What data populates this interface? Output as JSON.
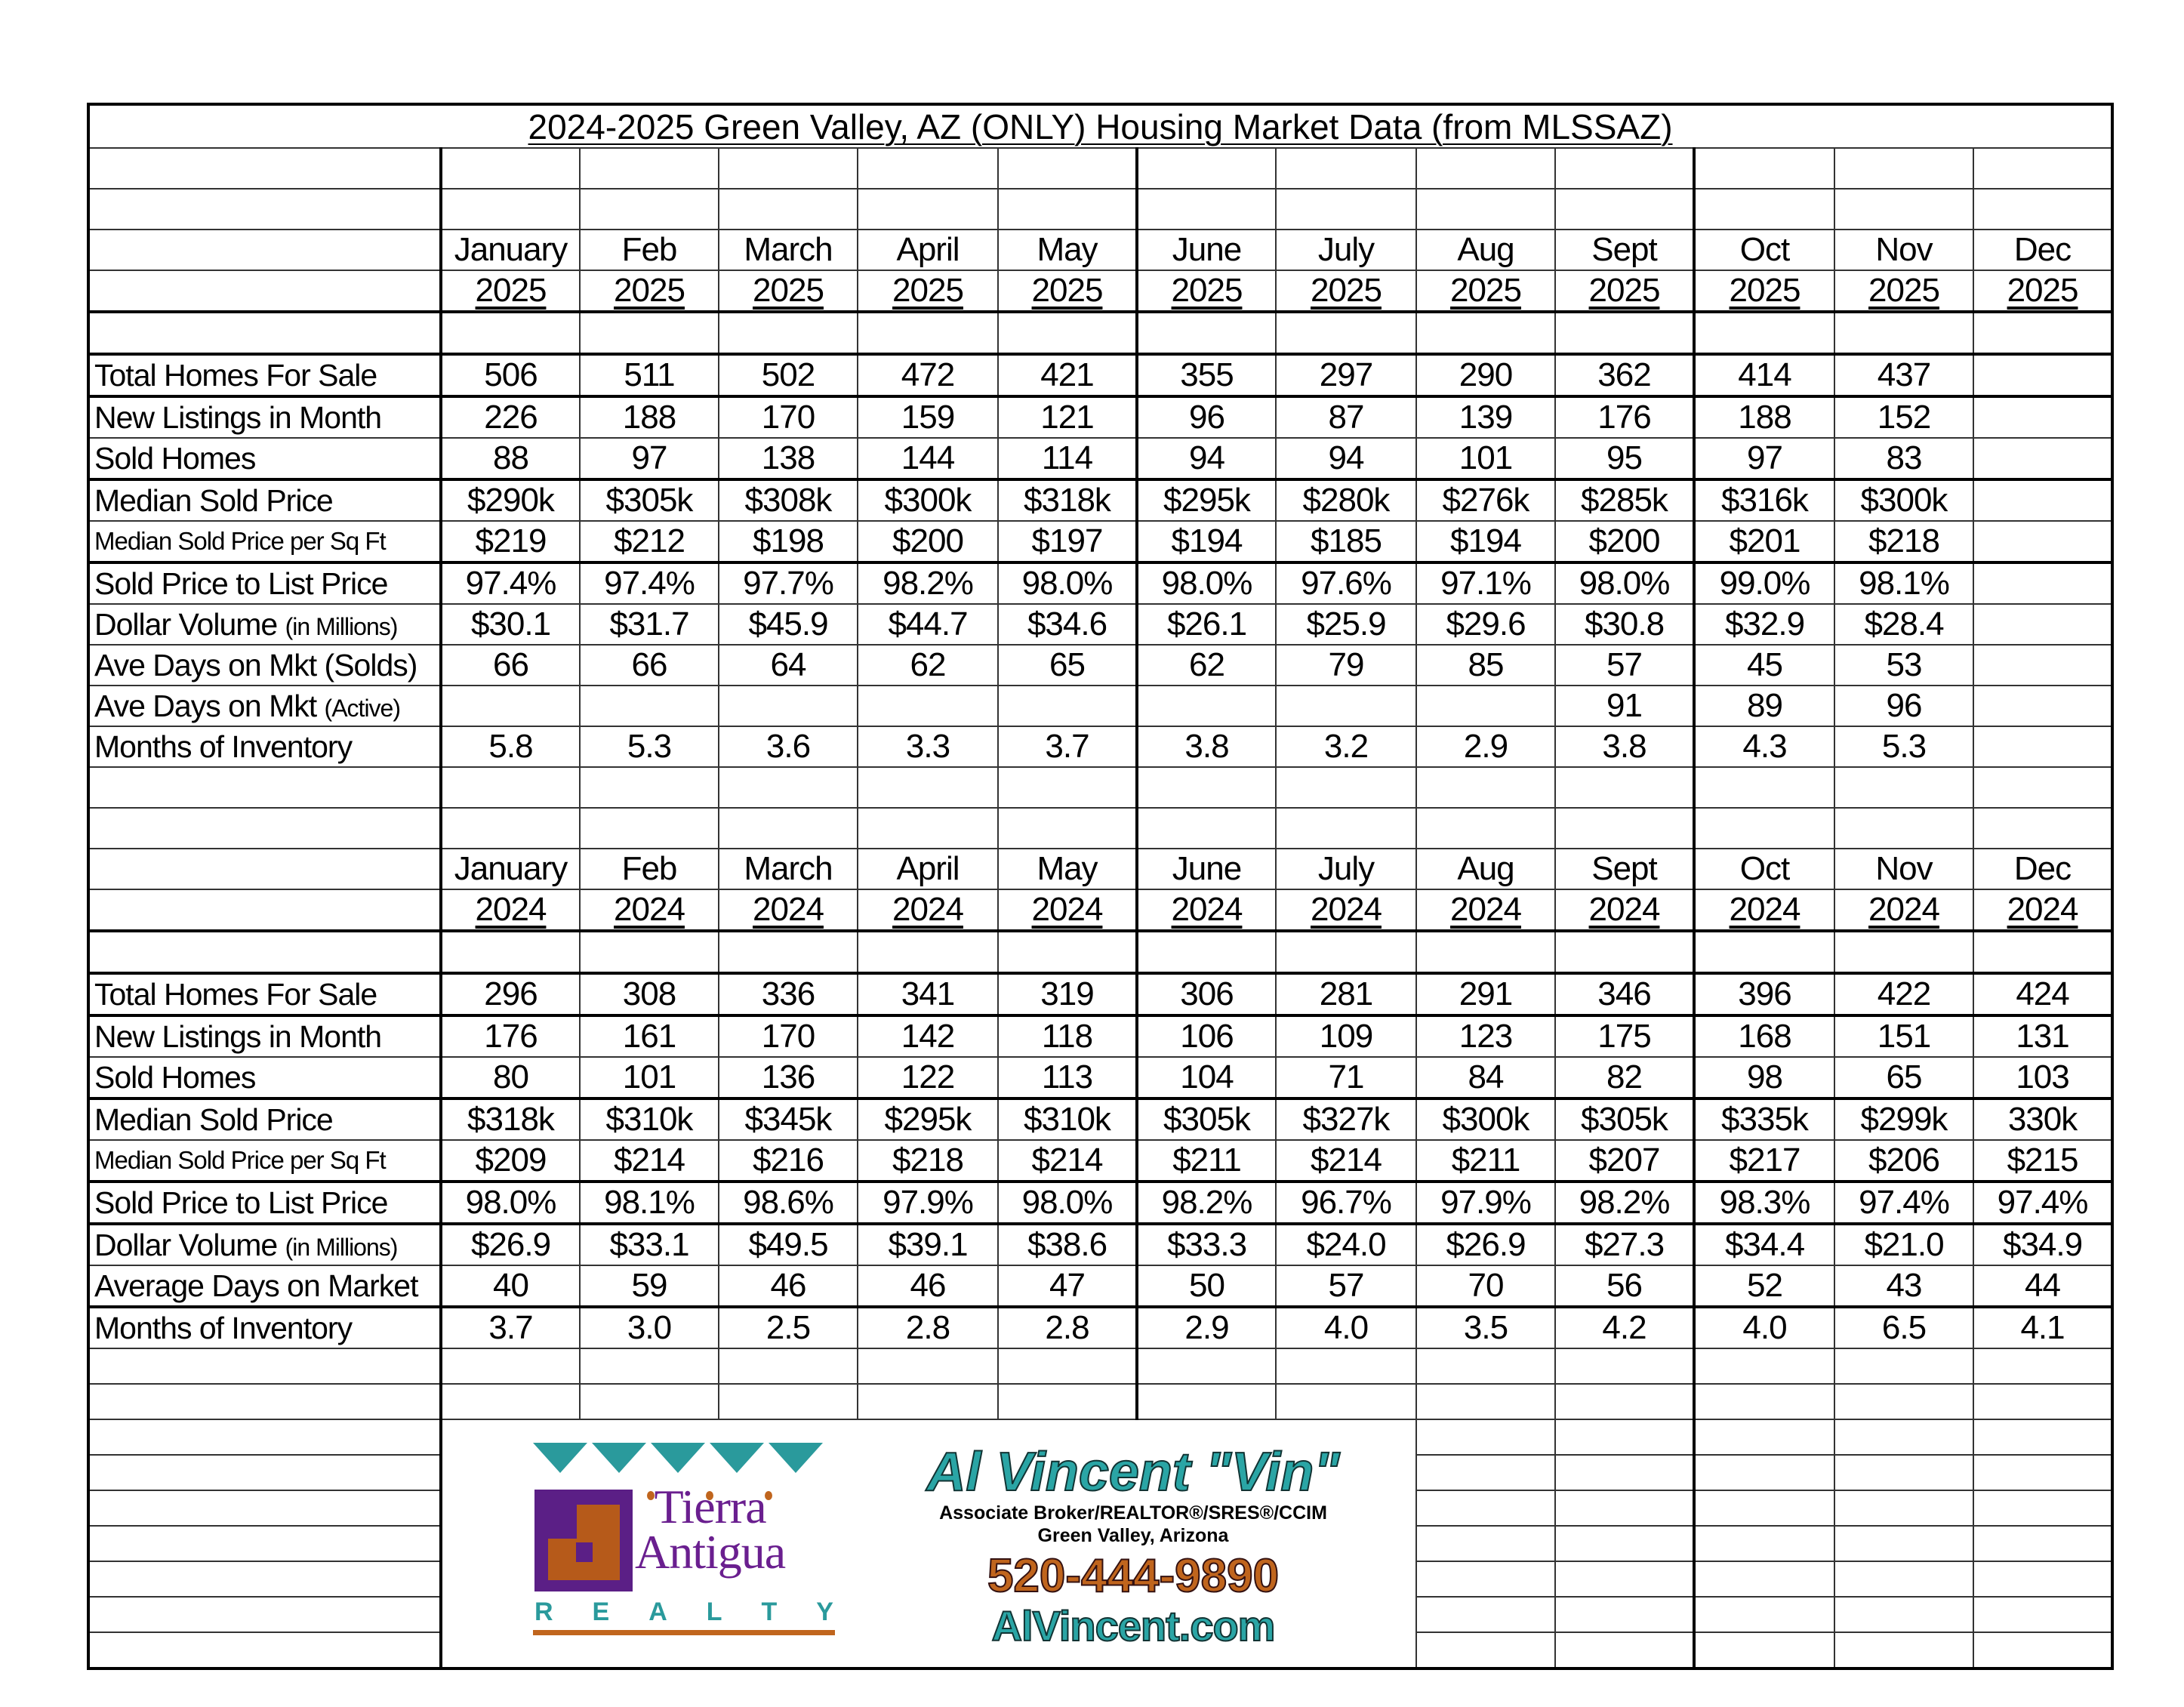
{
  "title": "2024-2025 Green Valley, AZ (ONLY) Housing Market Data (from MLSSAZ)",
  "tables": [
    {
      "months": [
        "January",
        "Feb",
        "March",
        "April",
        "May",
        "June",
        "July",
        "Aug",
        "Sept",
        "Oct",
        "Nov",
        "Dec"
      ],
      "year": "2025",
      "rows": [
        {
          "label": "Total Homes For Sale",
          "values": [
            "506",
            "511",
            "502",
            "472",
            "421",
            "355",
            "297",
            "290",
            "362",
            "414",
            "437",
            ""
          ]
        },
        {
          "label": "New Listings in Month",
          "values": [
            "226",
            "188",
            "170",
            "159",
            "121",
            "96",
            "87",
            "139",
            "176",
            "188",
            "152",
            ""
          ]
        },
        {
          "label": "Sold Homes",
          "values": [
            "88",
            "97",
            "138",
            "144",
            "114",
            "94",
            "94",
            "101",
            "95",
            "97",
            "83",
            ""
          ]
        },
        {
          "label": "Median Sold Price",
          "values": [
            "$290k",
            "$305k",
            "$308k",
            "$300k",
            "$318k",
            "$295k",
            "$280k",
            "$276k",
            "$285k",
            "$316k",
            "$300k",
            ""
          ]
        },
        {
          "label": "Median Sold Price per Sq Ft",
          "small": true,
          "values": [
            "$219",
            "$212",
            "$198",
            "$200",
            "$197",
            "$194",
            "$185",
            "$194",
            "$200",
            "$201",
            "$218",
            ""
          ]
        },
        {
          "label": "Sold Price to List Price",
          "values": [
            "97.4%",
            "97.4%",
            "97.7%",
            "98.2%",
            "98.0%",
            "98.0%",
            "97.6%",
            "97.1%",
            "98.0%",
            "99.0%",
            "98.1%",
            ""
          ]
        },
        {
          "label": "Dollar Volume ",
          "suffix": "(in Millions)",
          "values": [
            "$30.1",
            "$31.7",
            "$45.9",
            "$44.7",
            "$34.6",
            "$26.1",
            "$25.9",
            "$29.6",
            "$30.8",
            "$32.9",
            "$28.4",
            ""
          ]
        },
        {
          "label": "Ave Days on Mkt ",
          "suffix": "(Solds)",
          "suffix_same": true,
          "values": [
            "66",
            "66",
            "64",
            "62",
            "65",
            "62",
            "79",
            "85",
            "57",
            "45",
            "53",
            ""
          ]
        },
        {
          "label": "Ave Days on Mkt ",
          "suffix": "(Active)",
          "values": [
            "",
            "",
            "",
            "",
            "",
            "",
            "",
            "",
            "91",
            "89",
            "96",
            ""
          ]
        },
        {
          "label": "Months of Inventory",
          "values": [
            "5.8",
            "5.3",
            "3.6",
            "3.3",
            "3.7",
            "3.8",
            "3.2",
            "2.9",
            "3.8",
            "4.3",
            "5.3",
            ""
          ]
        }
      ]
    },
    {
      "months": [
        "January",
        "Feb",
        "March",
        "April",
        "May",
        "June",
        "July",
        "Aug",
        "Sept",
        "Oct",
        "Nov",
        "Dec"
      ],
      "year": "2024",
      "rows": [
        {
          "label": "Total Homes For Sale",
          "values": [
            "296",
            "308",
            "336",
            "341",
            "319",
            "306",
            "281",
            "291",
            "346",
            "396",
            "422",
            "424"
          ]
        },
        {
          "label": "New Listings in Month",
          "values": [
            "176",
            "161",
            "170",
            "142",
            "118",
            "106",
            "109",
            "123",
            "175",
            "168",
            "151",
            "131"
          ]
        },
        {
          "label": "Sold Homes",
          "values": [
            "80",
            "101",
            "136",
            "122",
            "113",
            "104",
            "71",
            "84",
            "82",
            "98",
            "65",
            "103"
          ]
        },
        {
          "label": "Median Sold Price",
          "values": [
            "$318k",
            "$310k",
            "$345k",
            "$295k",
            "$310k",
            "$305k",
            "$327k",
            "$300k",
            "$305k",
            "$335k",
            "$299k",
            "330k"
          ]
        },
        {
          "label": "Median Sold Price per Sq Ft",
          "small": true,
          "values": [
            "$209",
            "$214",
            "$216",
            "$218",
            "$214",
            "$211",
            "$214",
            "$211",
            "$207",
            "$217",
            "$206",
            "$215"
          ]
        },
        {
          "label": "Sold Price to List Price",
          "values": [
            "98.0%",
            "98.1%",
            "98.6%",
            "97.9%",
            "98.0%",
            "98.2%",
            "96.7%",
            "97.9%",
            "98.2%",
            "98.3%",
            "97.4%",
            "97.4%"
          ]
        },
        {
          "label": "Dollar Volume ",
          "suffix": "(in Millions)",
          "values": [
            "$26.9",
            "$33.1",
            "$49.5",
            "$39.1",
            "$38.6",
            "$33.3",
            "$24.0",
            "$26.9",
            "$27.3",
            "$34.4",
            "$21.0",
            "$34.9"
          ]
        },
        {
          "label": "Average Days on Market",
          "values": [
            "40",
            "59",
            "46",
            "46",
            "47",
            "50",
            "57",
            "70",
            "56",
            "52",
            "43",
            "44"
          ]
        },
        {
          "label": "Months of Inventory",
          "values": [
            "3.7",
            "3.0",
            "2.5",
            "2.8",
            "2.8",
            "2.9",
            "4.0",
            "3.5",
            "4.2",
            "4.0",
            "6.5",
            "4.1"
          ]
        }
      ]
    }
  ],
  "ad": {
    "brokerage_logo": {
      "line1": "Tierra",
      "line2": "Antigua",
      "line3": "REALTY",
      "colors": {
        "teal": "#2a9a9c",
        "purple": "#5b1f86",
        "orange": "#c0651d"
      }
    },
    "agent_name": "Al Vincent \"Vin\"",
    "agent_title": "Associate Broker/REALTOR®/SRES®/CCIM",
    "agent_location": "Green Valley, Arizona",
    "phone": "520-444-9890",
    "website": "AlVincent.com"
  }
}
